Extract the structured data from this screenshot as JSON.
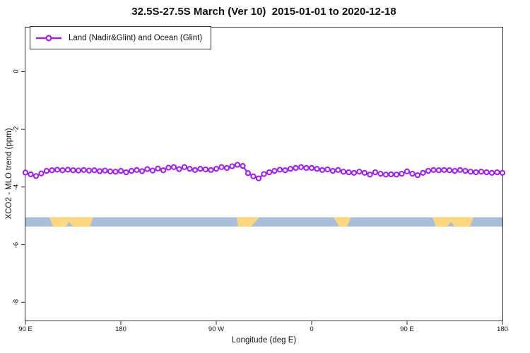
{
  "figure": {
    "title": "32.5S-27.5S March (Ver 10)  2015-01-01 to 2020-12-18"
  },
  "legend": {
    "label": "Land (Nadir&Glint) and Ocean (Glint)"
  },
  "chart_data": {
    "type": "line",
    "title": "32.5S-27.5S March (Ver 10)  2015-01-01 to 2020-12-18",
    "xlabel": "Longitude (deg E)",
    "ylabel": "XCO2 - MLO trend (ppm)",
    "x_range": [
      90,
      540
    ],
    "y_range": [
      1.53,
      -8.63
    ],
    "grid": "off",
    "legend_position": "top-left",
    "x_ticks": [
      {
        "lon": 90,
        "label": "90 E"
      },
      {
        "lon": 180,
        "label": "180"
      },
      {
        "lon": 270,
        "label": "90 W"
      },
      {
        "lon": 360,
        "label": "0"
      },
      {
        "lon": 450,
        "label": "90 E"
      },
      {
        "lon": 540,
        "label": "180"
      }
    ],
    "y_ticks": [
      {
        "value": 0,
        "label": "0"
      },
      {
        "value": -2,
        "label": "-2"
      },
      {
        "value": -4,
        "label": "-4"
      },
      {
        "value": -6,
        "label": "-6"
      },
      {
        "value": -8,
        "label": "-8"
      }
    ],
    "series": [
      {
        "name": "Land (Nadir&Glint) and Ocean (Glint)",
        "color": "#A020F0",
        "marker": "open-circle",
        "x_start": 90,
        "x_step": 5,
        "values": [
          -3.5,
          -3.56,
          -3.62,
          -3.53,
          -3.44,
          -3.42,
          -3.4,
          -3.42,
          -3.4,
          -3.42,
          -3.43,
          -3.41,
          -3.43,
          -3.42,
          -3.45,
          -3.43,
          -3.46,
          -3.47,
          -3.44,
          -3.49,
          -3.44,
          -3.41,
          -3.45,
          -3.38,
          -3.43,
          -3.36,
          -3.42,
          -3.33,
          -3.31,
          -3.38,
          -3.31,
          -3.37,
          -3.41,
          -3.37,
          -3.39,
          -3.41,
          -3.37,
          -3.31,
          -3.34,
          -3.28,
          -3.23,
          -3.27,
          -3.52,
          -3.63,
          -3.7,
          -3.55,
          -3.49,
          -3.44,
          -3.4,
          -3.42,
          -3.37,
          -3.34,
          -3.31,
          -3.34,
          -3.34,
          -3.37,
          -3.41,
          -3.39,
          -3.44,
          -3.41,
          -3.47,
          -3.49,
          -3.51,
          -3.47,
          -3.51,
          -3.57,
          -3.49,
          -3.54,
          -3.57,
          -3.56,
          -3.57,
          -3.54,
          -3.46,
          -3.54,
          -3.59,
          -3.51,
          -3.44,
          -3.41,
          -3.42,
          -3.41,
          -3.42,
          -3.44,
          -3.41,
          -3.44,
          -3.47,
          -3.49,
          -3.47,
          -3.49,
          -3.51,
          -3.49,
          -3.51
        ]
      }
    ],
    "surface_band": {
      "description": "land/ocean indicator strip along longitude",
      "y_top": -5.05,
      "y_bottom": -5.37,
      "ocean_color": "#a9bedb",
      "land_color": "#ffd87e",
      "land_polygons": [
        [
          [
            112.7,
            0
          ],
          [
            154,
            0
          ],
          [
            150.7,
            1
          ],
          [
            134.7,
            1
          ],
          [
            131.3,
            0.5
          ],
          [
            128,
            1
          ],
          [
            116,
            1
          ]
        ],
        [
          [
            289.3,
            0
          ],
          [
            310.7,
            0
          ],
          [
            302.7,
            1
          ],
          [
            290.7,
            1
          ]
        ],
        [
          [
            380.7,
            0
          ],
          [
            397.3,
            0
          ],
          [
            393.3,
            1
          ],
          [
            386,
            1
          ]
        ],
        [
          [
            474,
            0
          ],
          [
            512.7,
            0
          ],
          [
            509.3,
            1
          ],
          [
            494.7,
            1
          ],
          [
            491.3,
            0.46
          ],
          [
            488,
            1
          ],
          [
            477.3,
            1
          ]
        ]
      ]
    }
  }
}
